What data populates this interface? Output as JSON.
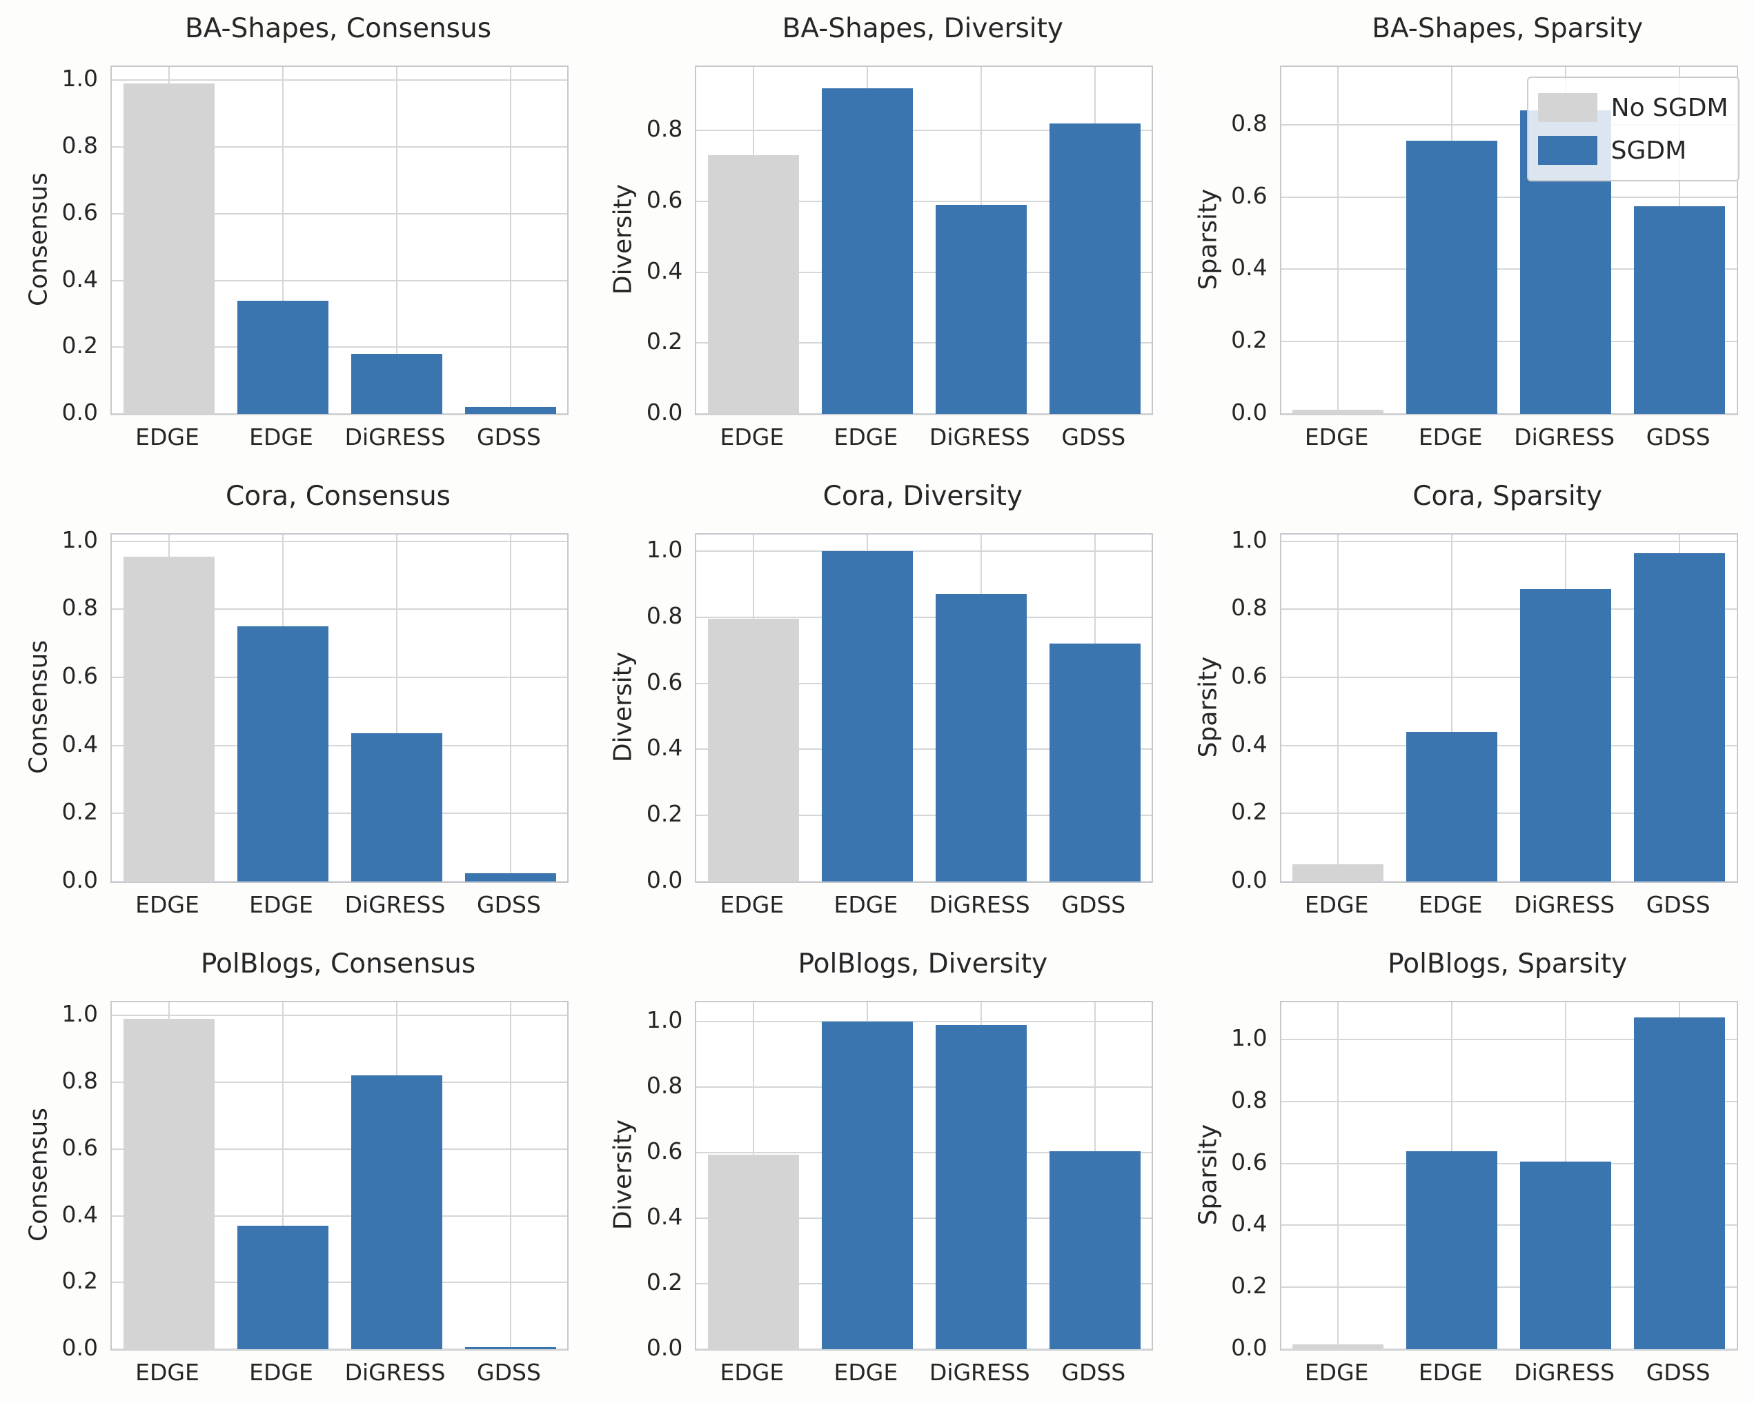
{
  "figure": {
    "palette": {
      "no_sgdm_color": "#d3d4d3",
      "sgdm_color": "#3b75af",
      "grid_color": "#d4d6d8",
      "spine_color": "#c6c9cc",
      "text_color": "#262626",
      "plot_background": "#ffffff",
      "figure_background": "#fdfdfc"
    },
    "legend": {
      "position": "upper right of BA-Shapes Sparsity subplot",
      "items": [
        {
          "label": "No SGDM",
          "group": "No SGDM"
        },
        {
          "label": "SGDM",
          "group": "SGDM"
        }
      ]
    }
  },
  "chart_data": [
    {
      "type": "bar",
      "title": "BA-Shapes, Consensus",
      "ylabel": "Consensus",
      "categories": [
        "EDGE",
        "EDGE",
        "DiGRESS",
        "GDSS"
      ],
      "groups": [
        "No SGDM",
        "SGDM",
        "SGDM",
        "SGDM"
      ],
      "values": [
        0.99,
        0.34,
        0.18,
        0.02
      ],
      "yticks": [
        0.0,
        0.2,
        0.4,
        0.6,
        0.8,
        1.0
      ],
      "ylim": [
        0,
        1.04
      ],
      "grid": "on",
      "show_legend": false
    },
    {
      "type": "bar",
      "title": "BA-Shapes, Diversity",
      "ylabel": "Diversity",
      "categories": [
        "EDGE",
        "EDGE",
        "DiGRESS",
        "GDSS"
      ],
      "groups": [
        "No SGDM",
        "SGDM",
        "SGDM",
        "SGDM"
      ],
      "values": [
        0.73,
        0.92,
        0.59,
        0.82
      ],
      "yticks": [
        0.0,
        0.2,
        0.4,
        0.6,
        0.8
      ],
      "ylim": [
        0,
        0.98
      ],
      "grid": "on",
      "show_legend": false
    },
    {
      "type": "bar",
      "title": "BA-Shapes, Sparsity",
      "ylabel": "Sparsity",
      "categories": [
        "EDGE",
        "EDGE",
        "DiGRESS",
        "GDSS"
      ],
      "groups": [
        "No SGDM",
        "SGDM",
        "SGDM",
        "SGDM"
      ],
      "values": [
        0.012,
        0.755,
        0.84,
        0.575
      ],
      "yticks": [
        0.0,
        0.2,
        0.4,
        0.6,
        0.8
      ],
      "ylim": [
        0,
        0.96
      ],
      "grid": "on",
      "show_legend": true
    },
    {
      "type": "bar",
      "title": "Cora, Consensus",
      "ylabel": "Consensus",
      "categories": [
        "EDGE",
        "EDGE",
        "DiGRESS",
        "GDSS"
      ],
      "groups": [
        "No SGDM",
        "SGDM",
        "SGDM",
        "SGDM"
      ],
      "values": [
        0.955,
        0.75,
        0.435,
        0.025
      ],
      "yticks": [
        0.0,
        0.2,
        0.4,
        0.6,
        0.8,
        1.0
      ],
      "ylim": [
        0,
        1.02
      ],
      "grid": "on",
      "show_legend": false
    },
    {
      "type": "bar",
      "title": "Cora, Diversity",
      "ylabel": "Diversity",
      "categories": [
        "EDGE",
        "EDGE",
        "DiGRESS",
        "GDSS"
      ],
      "groups": [
        "No SGDM",
        "SGDM",
        "SGDM",
        "SGDM"
      ],
      "values": [
        0.795,
        1.0,
        0.87,
        0.72
      ],
      "yticks": [
        0.0,
        0.2,
        0.4,
        0.6,
        0.8,
        1.0
      ],
      "ylim": [
        0,
        1.05
      ],
      "grid": "on",
      "show_legend": false
    },
    {
      "type": "bar",
      "title": "Cora, Sparsity",
      "ylabel": "Sparsity",
      "categories": [
        "EDGE",
        "EDGE",
        "DiGRESS",
        "GDSS"
      ],
      "groups": [
        "No SGDM",
        "SGDM",
        "SGDM",
        "SGDM"
      ],
      "values": [
        0.05,
        0.44,
        0.86,
        0.965
      ],
      "yticks": [
        0.0,
        0.2,
        0.4,
        0.6,
        0.8,
        1.0
      ],
      "ylim": [
        0,
        1.02
      ],
      "grid": "on",
      "show_legend": false
    },
    {
      "type": "bar",
      "title": "PolBlogs, Consensus",
      "ylabel": "Consensus",
      "categories": [
        "EDGE",
        "EDGE",
        "DiGRESS",
        "GDSS"
      ],
      "groups": [
        "No SGDM",
        "SGDM",
        "SGDM",
        "SGDM"
      ],
      "values": [
        0.99,
        0.37,
        0.82,
        0.006
      ],
      "yticks": [
        0.0,
        0.2,
        0.4,
        0.6,
        0.8,
        1.0
      ],
      "ylim": [
        0,
        1.04
      ],
      "grid": "on",
      "show_legend": false
    },
    {
      "type": "bar",
      "title": "PolBlogs, Diversity",
      "ylabel": "Diversity",
      "categories": [
        "EDGE",
        "EDGE",
        "DiGRESS",
        "GDSS"
      ],
      "groups": [
        "No SGDM",
        "SGDM",
        "SGDM",
        "SGDM"
      ],
      "values": [
        0.595,
        1.0,
        0.99,
        0.605
      ],
      "yticks": [
        0.0,
        0.2,
        0.4,
        0.6,
        0.8,
        1.0
      ],
      "ylim": [
        0,
        1.06
      ],
      "grid": "on",
      "show_legend": false
    },
    {
      "type": "bar",
      "title": "PolBlogs, Sparsity",
      "ylabel": "Sparsity",
      "categories": [
        "EDGE",
        "EDGE",
        "DiGRESS",
        "GDSS"
      ],
      "groups": [
        "No SGDM",
        "SGDM",
        "SGDM",
        "SGDM"
      ],
      "values": [
        0.015,
        0.64,
        0.605,
        1.07
      ],
      "yticks": [
        0.0,
        0.2,
        0.4,
        0.6,
        0.8,
        1.0
      ],
      "ylim": [
        0,
        1.12
      ],
      "grid": "on",
      "show_legend": false
    }
  ]
}
